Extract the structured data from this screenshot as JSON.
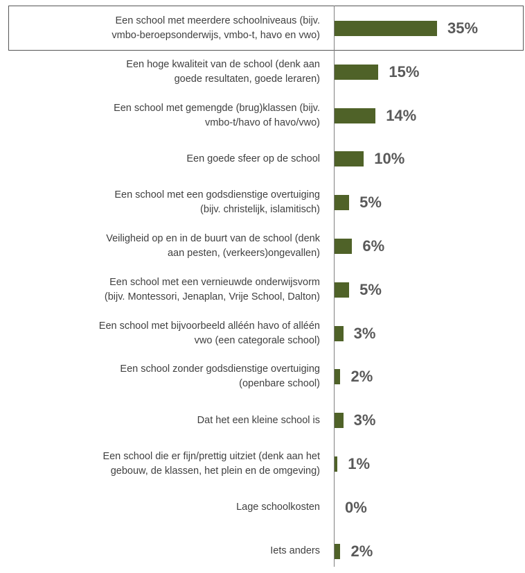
{
  "chart_data": {
    "type": "bar",
    "orientation": "horizontal",
    "color": "#4f6228",
    "categories": [
      "Een school met meerdere schoolniveaus (bijv.\nvmbo-beroepsonderwijs, vmbo-t, havo en vwo)",
      "Een hoge kwaliteit van de school (denk aan\ngoede resultaten, goede leraren)",
      "Een school met gemengde (brug)klassen (bijv.\nvmbo-t/havo of havo/vwo)",
      "Een goede sfeer op de school",
      "Een school met een godsdienstige overtuiging\n(bijv. christelijk, islamitisch)",
      "Veiligheid op en in de buurt van de school (denk\naan pesten, (verkeers)ongevallen)",
      "Een school met een vernieuwde onderwijsvorm\n(bijv. Montessori, Jenaplan, Vrije School, Dalton)",
      "Een school met bijvoorbeeld alléén havo of alléén\nvwo (een categorale school)",
      "Een school zonder godsdienstige overtuiging\n(openbare school)",
      "Dat het een kleine school is",
      "Een school die er fijn/prettig uitziet (denk aan het\ngebouw, de klassen, het plein en de omgeving)",
      "Lage schoolkosten",
      "Iets anders"
    ],
    "values": [
      35,
      15,
      14,
      10,
      5,
      6,
      5,
      3,
      2,
      3,
      1,
      0,
      2
    ],
    "value_labels": [
      "35%",
      "15%",
      "14%",
      "10%",
      "5%",
      "6%",
      "5%",
      "3%",
      "2%",
      "3%",
      "1%",
      "0%",
      "2%"
    ]
  }
}
